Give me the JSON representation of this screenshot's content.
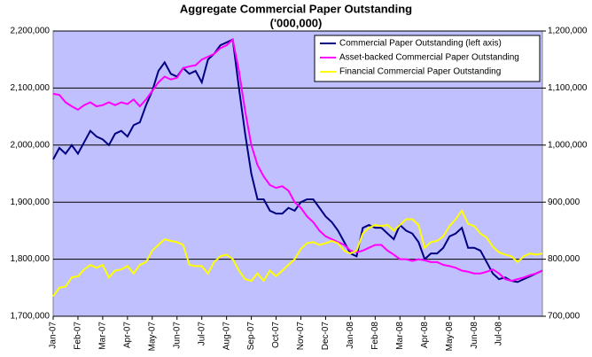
{
  "chart_data": {
    "type": "line",
    "title": "Aggregate Commercial Paper Outstanding",
    "subtitle": "('000,000)",
    "categories": [
      "Jan-07",
      null,
      null,
      null,
      "Feb-07",
      null,
      null,
      null,
      "Mar-07",
      null,
      null,
      null,
      "Apr-07",
      null,
      null,
      null,
      "May-07",
      null,
      null,
      null,
      "Jun-07",
      null,
      null,
      null,
      "Jul-07",
      null,
      null,
      null,
      "Aug-07",
      null,
      null,
      null,
      "Sep-07",
      null,
      null,
      null,
      "Oct-07",
      null,
      null,
      null,
      "Nov-07",
      null,
      null,
      null,
      "Dec-07",
      null,
      null,
      null,
      "Jan-08",
      null,
      null,
      null,
      "Feb-08",
      null,
      null,
      null,
      "Mar-08",
      null,
      null,
      null,
      "Apr-08",
      null,
      null,
      null,
      "May-08",
      null,
      null,
      null,
      "Jun-08",
      null,
      null,
      null,
      "Jul-08",
      null,
      null,
      null,
      null,
      null,
      null,
      null
    ],
    "series": [
      {
        "name": "Commercial Paper Outstanding (left axis)",
        "color": "#000080",
        "axis": "y",
        "values": [
          1975000,
          1995000,
          1985000,
          2000000,
          1985000,
          2005000,
          2025000,
          2015000,
          2010000,
          2000000,
          2020000,
          2025000,
          2015000,
          2035000,
          2040000,
          2070000,
          2095000,
          2130000,
          2145000,
          2125000,
          2120000,
          2135000,
          2125000,
          2130000,
          2110000,
          2150000,
          2160000,
          2175000,
          2180000,
          2185000,
          2100000,
          2020000,
          1950000,
          1905000,
          1905000,
          1885000,
          1880000,
          1880000,
          1890000,
          1885000,
          1900000,
          1905000,
          1905000,
          1890000,
          1875000,
          1865000,
          1850000,
          1830000,
          1810000,
          1805000,
          1855000,
          1860000,
          1855000,
          1855000,
          1845000,
          1835000,
          1860000,
          1850000,
          1845000,
          1830000,
          1800000,
          1810000,
          1810000,
          1820000,
          1840000,
          1845000,
          1855000,
          1820000,
          1820000,
          1815000,
          1795000,
          1775000,
          1765000,
          1768000,
          1762000,
          1760000,
          1765000,
          1770000,
          1775000,
          1780000
        ]
      },
      {
        "name": "Asset-backed Commercial Paper Outstanding",
        "color": "#ff00ff",
        "axis": "y2",
        "values": [
          1090000,
          1088000,
          1075000,
          1068000,
          1062000,
          1070000,
          1075000,
          1068000,
          1070000,
          1075000,
          1070000,
          1075000,
          1072000,
          1080000,
          1068000,
          1080000,
          1095000,
          1110000,
          1120000,
          1115000,
          1118000,
          1135000,
          1138000,
          1140000,
          1150000,
          1155000,
          1160000,
          1170000,
          1175000,
          1185000,
          1130000,
          1060000,
          1000000,
          965000,
          945000,
          930000,
          925000,
          928000,
          920000,
          900000,
          890000,
          875000,
          865000,
          850000,
          840000,
          835000,
          830000,
          825000,
          815000,
          812000,
          815000,
          820000,
          825000,
          825000,
          815000,
          808000,
          800000,
          800000,
          797000,
          800000,
          798000,
          795000,
          795000,
          790000,
          788000,
          785000,
          780000,
          778000,
          775000,
          775000,
          778000,
          782000,
          775000,
          765000,
          762000,
          765000,
          768000,
          772000,
          775000,
          780000
        ]
      },
      {
        "name": "Financial Commercial Paper Outstanding",
        "color": "#ffff00",
        "axis": "y2",
        "values": [
          735000,
          750000,
          752000,
          768000,
          770000,
          782000,
          790000,
          785000,
          790000,
          768000,
          780000,
          782000,
          788000,
          775000,
          790000,
          795000,
          815000,
          825000,
          835000,
          832000,
          830000,
          825000,
          790000,
          788000,
          788000,
          775000,
          795000,
          805000,
          808000,
          800000,
          780000,
          765000,
          762000,
          775000,
          762000,
          780000,
          770000,
          780000,
          790000,
          800000,
          818000,
          828000,
          830000,
          825000,
          828000,
          832000,
          828000,
          815000,
          810000,
          815000,
          845000,
          855000,
          860000,
          858000,
          860000,
          850000,
          860000,
          870000,
          870000,
          860000,
          820000,
          830000,
          832000,
          840000,
          858000,
          870000,
          885000,
          862000,
          858000,
          845000,
          838000,
          822000,
          812000,
          808000,
          805000,
          795000,
          805000,
          810000,
          808000,
          810000
        ]
      }
    ],
    "ylim": [
      1700000,
      2200000
    ],
    "yticks": [
      {
        "value": 1700000,
        "label": "1,700,000"
      },
      {
        "value": 1800000,
        "label": "1,800,000"
      },
      {
        "value": 1900000,
        "label": "1,900,000"
      },
      {
        "value": 2000000,
        "label": "2,000,000"
      },
      {
        "value": 2100000,
        "label": "2,100,000"
      },
      {
        "value": 2200000,
        "label": "2,200,000"
      }
    ],
    "y2lim": [
      700000,
      1200000
    ],
    "y2ticks": [
      {
        "value": 700000,
        "label": "700,000"
      },
      {
        "value": 800000,
        "label": "800,000"
      },
      {
        "value": 900000,
        "label": "900,000"
      },
      {
        "value": 1000000,
        "label": "1,000,000"
      },
      {
        "value": 1100000,
        "label": "1,100,000"
      },
      {
        "value": 1200000,
        "label": "1,200,000"
      }
    ],
    "grid": true,
    "legend": "upper right"
  }
}
